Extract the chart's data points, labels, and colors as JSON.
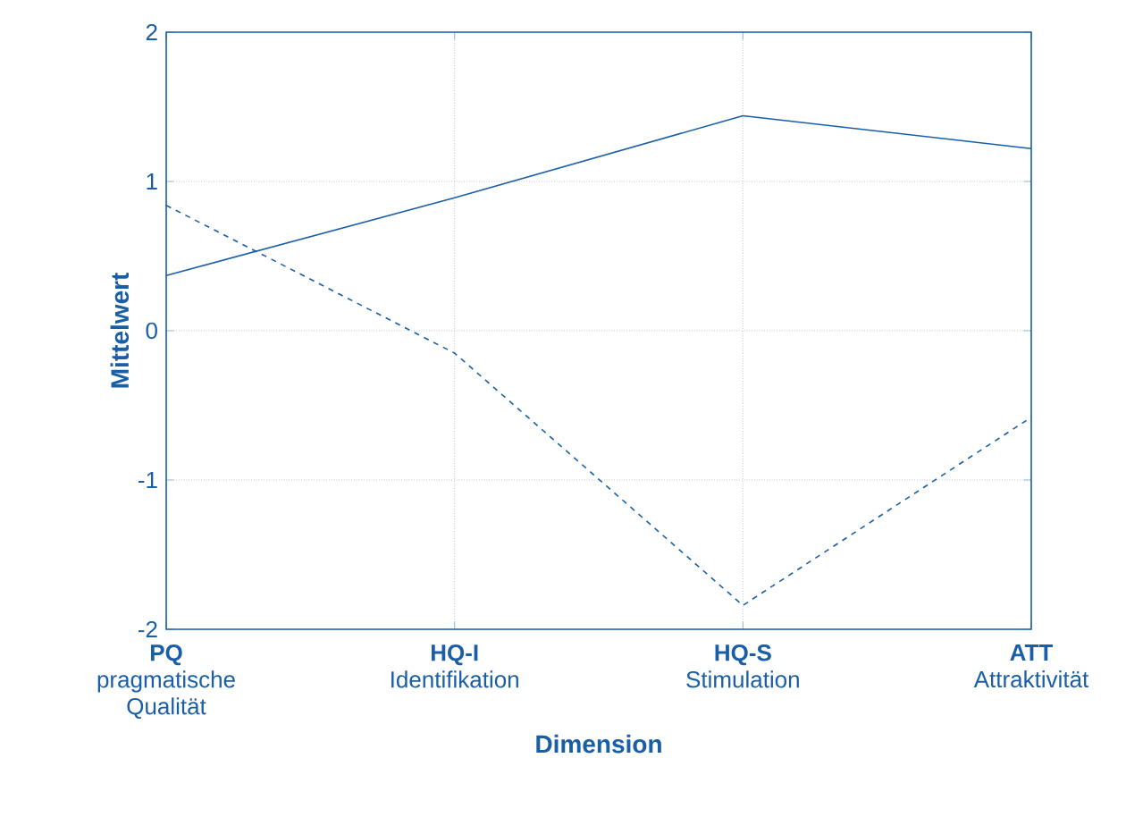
{
  "chart_data": {
    "type": "line",
    "xlabel": "Dimension",
    "ylabel": "Mittelwert",
    "categories": [
      "**PQ** pragmatische Qualität",
      "**HQ-I** Identifikation",
      "**HQ-S** Stimulation",
      "**ATT** Attraktivität"
    ],
    "series": [
      {
        "color": "#1a5ea8",
        "line_style": "solid",
        "values": [
          0.37,
          0.89,
          1.44,
          1.22
        ]
      },
      {
        "color": "#1a5ea8",
        "line_style": "dashed",
        "values": [
          0.84,
          -0.15,
          -1.84,
          -0.58
        ]
      }
    ],
    "ylim": [
      -2,
      2
    ],
    "yticks": [
      -2,
      -1,
      0,
      1,
      2
    ],
    "grid": true,
    "marker": "none"
  }
}
